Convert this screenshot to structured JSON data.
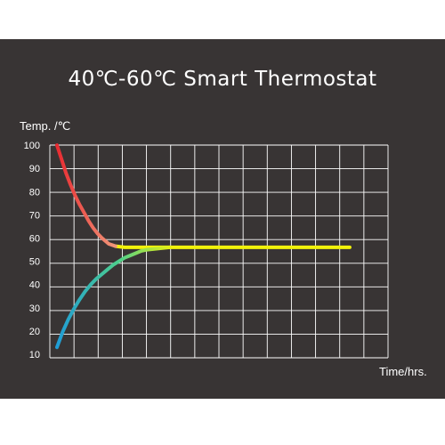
{
  "title": "40℃-60℃  Smart Thermostat",
  "chart_data": {
    "type": "line",
    "title": "40℃-60℃  Smart Thermostat",
    "ylabel": "Temp. /℃",
    "xlabel": "Time/hrs.",
    "ylim": [
      10,
      100
    ],
    "yticks": [
      "10",
      "20",
      "30",
      "40",
      "50",
      "60",
      "70",
      "80",
      "90",
      "100"
    ],
    "x_grid_divisions": 14,
    "grid": true,
    "colors": {
      "background": "#383434",
      "grid": "#ffffff",
      "cooling_start": "#e8282f",
      "cooling_end": "#f2a080",
      "warming_start": "#1e9bd8",
      "warming_mid": "#4fd08a",
      "plateau": "#f2f20a"
    },
    "series": [
      {
        "x": [
          0,
          0.2,
          0.4,
          0.6,
          0.8,
          1.0,
          1.2,
          1.4,
          1.6,
          1.8,
          2.0,
          2.3,
          2.6,
          3.0,
          3.5,
          4.0,
          5,
          6,
          7,
          8,
          9,
          10,
          11,
          12,
          13
        ],
        "values": [
          100,
          94,
          88,
          83,
          78.5,
          74.5,
          71,
          67.5,
          64.5,
          62,
          60,
          57.5,
          56.5,
          56,
          56,
          56,
          56,
          56,
          56,
          56,
          56,
          56,
          56,
          56,
          56
        ]
      },
      {
        "x": [
          0,
          0.25,
          0.5,
          0.75,
          1.0,
          1.25,
          1.5,
          1.75,
          2.0,
          2.25,
          2.5,
          2.75,
          3.0,
          3.25,
          3.5,
          3.75,
          4.0,
          4.5,
          5.0
        ],
        "values": [
          13,
          19.5,
          25,
          29.5,
          33.5,
          37,
          40,
          42.5,
          44.5,
          46.5,
          48.5,
          50,
          51.5,
          52.5,
          53.5,
          54.5,
          55,
          55.5,
          56
        ]
      }
    ]
  }
}
